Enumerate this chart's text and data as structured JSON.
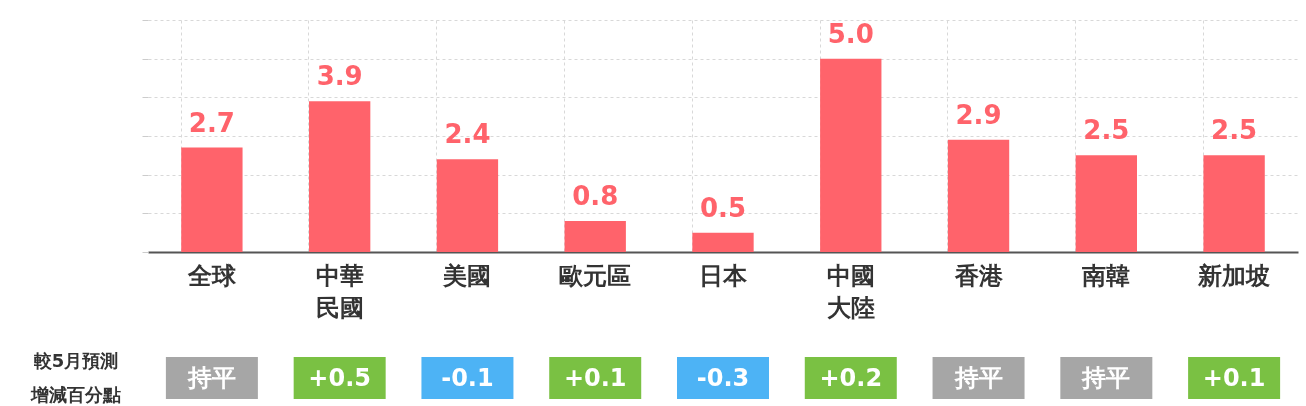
{
  "chart_data": {
    "type": "bar",
    "categories": [
      "全球",
      "中華民國",
      "美國",
      "歐元區",
      "日本",
      "中國大陸",
      "香港",
      "南韓",
      "新加坡"
    ],
    "values": [
      2.7,
      3.9,
      2.4,
      0.8,
      0.5,
      5.0,
      2.9,
      2.5,
      2.5
    ],
    "color": "#ff636b",
    "value_labels": [
      "2.7",
      "3.9",
      "2.4",
      "0.8",
      "0.5",
      "5.0",
      "2.9",
      "2.5",
      "2.5"
    ],
    "ylim": [
      0,
      6
    ],
    "tick_labels": "x",
    "grid": true,
    "annotations": [
      "較5月預測增減百分點",
      "持平",
      "+0.5",
      "-0.1",
      "+0.1",
      "-0.3",
      "+0.2",
      "持平",
      "持平",
      "+0.1"
    ]
  }
}
